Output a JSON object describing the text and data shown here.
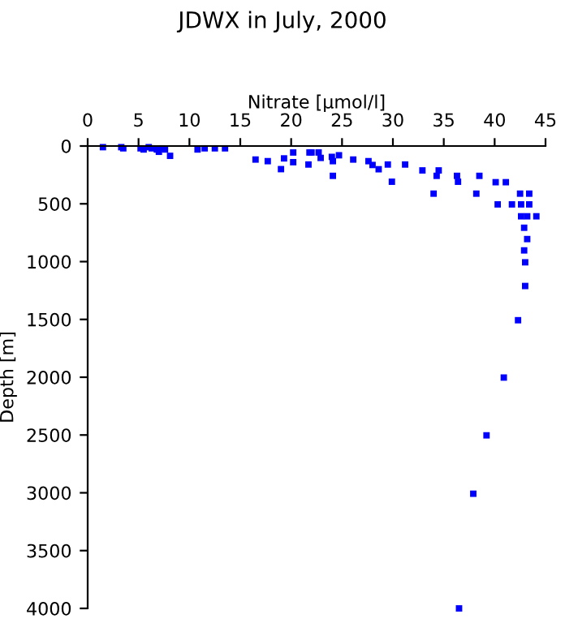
{
  "chart_data": {
    "type": "scatter",
    "title": "JDWX in July, 2000",
    "xlabel": "Nitrate [µmol/l]",
    "ylabel": "Depth [m]",
    "x": [
      1.5,
      3.3,
      3.5,
      5.2,
      5.5,
      6.0,
      6.3,
      6.8,
      7.0,
      7.3,
      7.6,
      8.1,
      10.8,
      11.5,
      12.5,
      13.5,
      16.5,
      17.7,
      19.0,
      19.3,
      20.2,
      20.2,
      21.8,
      21.7,
      22.0,
      22.7,
      22.9,
      24.0,
      24.1,
      24.7,
      24.1,
      26.1,
      27.6,
      28.0,
      28.6,
      29.5,
      29.9,
      31.2,
      32.9,
      34.5,
      34.3,
      34.0,
      36.3,
      36.4,
      38.5,
      38.2,
      40.1,
      41.1,
      40.3,
      41.7,
      42.5,
      43.4,
      42.6,
      43.4,
      42.6,
      43.2,
      44.1,
      42.9,
      43.2,
      42.9,
      43.0,
      43.0,
      42.3,
      40.9,
      39.2,
      37.9,
      36.5
    ],
    "series": [
      {
        "color": "#0000ff",
        "values": [
          10,
          10,
          20,
          20,
          30,
          10,
          20,
          30,
          50,
          20,
          30,
          85,
          30,
          20,
          20,
          20,
          117,
          131,
          200,
          107,
          56,
          140,
          56,
          160,
          56,
          56,
          103,
          94,
          131,
          80,
          258,
          117,
          131,
          164,
          201,
          160,
          309,
          160,
          211,
          211,
          258,
          412,
          258,
          309,
          258,
          412,
          313,
          313,
          505,
          505,
          412,
          412,
          505,
          505,
          608,
          608,
          608,
          707,
          805,
          903,
          1006,
          1211,
          1507,
          2003,
          2503,
          3008,
          4000
        ]
      }
    ],
    "xlim": [
      0,
      45
    ],
    "xticks": [
      0,
      5,
      10,
      15,
      20,
      25,
      30,
      35,
      40,
      45
    ],
    "ylim": [
      4000,
      0
    ],
    "yticks": [
      0,
      500,
      1000,
      1500,
      2000,
      2500,
      3000,
      3500,
      4000
    ],
    "marker": "square",
    "grid": false,
    "legend": false
  }
}
